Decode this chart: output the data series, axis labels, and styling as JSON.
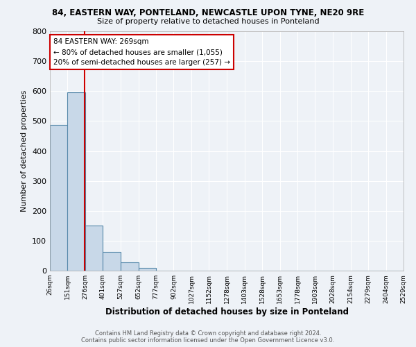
{
  "title1": "84, EASTERN WAY, PONTELAND, NEWCASTLE UPON TYNE, NE20 9RE",
  "title2": "Size of property relative to detached houses in Ponteland",
  "xlabel": "Distribution of detached houses by size in Ponteland",
  "ylabel": "Number of detached properties",
  "bin_labels": [
    "26sqm",
    "151sqm",
    "276sqm",
    "401sqm",
    "527sqm",
    "652sqm",
    "777sqm",
    "902sqm",
    "1027sqm",
    "1152sqm",
    "1278sqm",
    "1403sqm",
    "1528sqm",
    "1653sqm",
    "1778sqm",
    "1903sqm",
    "2028sqm",
    "2154sqm",
    "2279sqm",
    "2404sqm",
    "2529sqm"
  ],
  "bin_edges": [
    26,
    151,
    276,
    401,
    527,
    652,
    777,
    902,
    1027,
    1152,
    1278,
    1403,
    1528,
    1653,
    1778,
    1903,
    2028,
    2154,
    2279,
    2404,
    2529
  ],
  "bar_heights": [
    487,
    595,
    150,
    63,
    28,
    10,
    0,
    0,
    0,
    0,
    0,
    0,
    0,
    0,
    0,
    0,
    0,
    0,
    0,
    0
  ],
  "bar_color": "#c8d8e8",
  "bar_edge_color": "#5588aa",
  "bar_edge_width": 0.8,
  "vline_x": 269,
  "vline_color": "#cc0000",
  "ylim": [
    0,
    800
  ],
  "yticks": [
    0,
    100,
    200,
    300,
    400,
    500,
    600,
    700,
    800
  ],
  "annotation_text": "84 EASTERN WAY: 269sqm\n← 80% of detached houses are smaller (1,055)\n20% of semi-detached houses are larger (257) →",
  "annotation_box_color": "#ffffff",
  "annotation_box_edge_color": "#cc0000",
  "bg_color": "#eef2f7",
  "grid_color": "#ffffff",
  "footer_line1": "Contains HM Land Registry data © Crown copyright and database right 2024.",
  "footer_line2": "Contains public sector information licensed under the Open Government Licence v3.0."
}
